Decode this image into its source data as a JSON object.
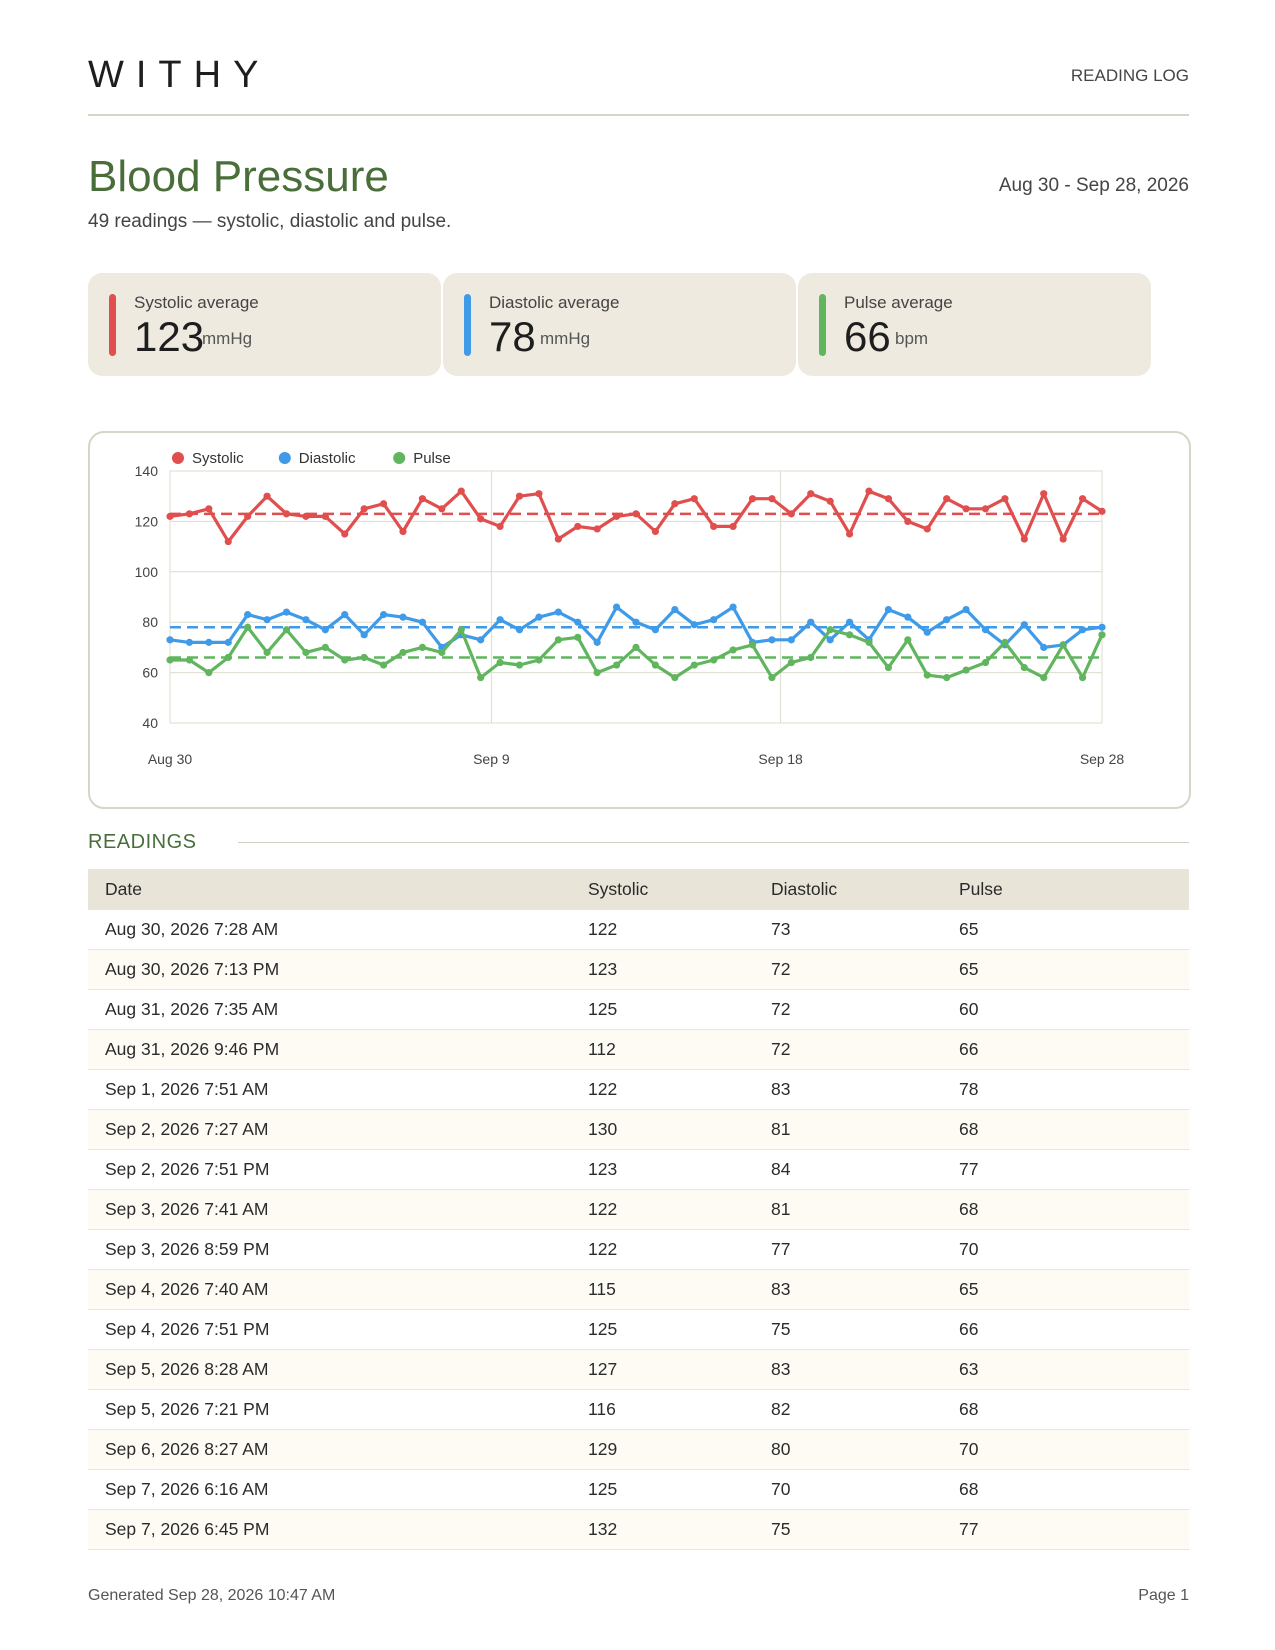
{
  "header": {
    "brand": "WITHY",
    "doc_type": "READING LOG"
  },
  "report": {
    "title": "Blood Pressure",
    "subtitle": "49 readings — systolic, diastolic and pulse.",
    "date_range": "Aug 30 - Sep 28, 2026"
  },
  "summary": [
    {
      "label": "Systolic average",
      "value": "123",
      "unit": "mmHg",
      "color": "#e04e4e"
    },
    {
      "label": "Diastolic average",
      "value": "78",
      "unit": "mmHg",
      "color": "#3f9ae8"
    },
    {
      "label": "Pulse average",
      "value": "66",
      "unit": "bpm",
      "color": "#60b55e"
    }
  ],
  "chart_data": {
    "type": "line",
    "title": "",
    "xlabel": "",
    "ylabel": "",
    "x_range": [
      "Aug 30",
      "Sep 28"
    ],
    "x_ticks": [
      "Aug 30",
      "Sep 9",
      "Sep 18",
      "Sep 28"
    ],
    "ylim": [
      40,
      140
    ],
    "y_ticks": [
      40,
      60,
      80,
      100,
      120,
      140
    ],
    "grid": true,
    "legend_position": "top-left",
    "x": [
      "Aug 30",
      "Aug 30",
      "Aug 31",
      "Aug 31",
      "Sep 1",
      "Sep 2",
      "Sep 2",
      "Sep 3",
      "Sep 3",
      "Sep 4",
      "Sep 4",
      "Sep 5",
      "Sep 5",
      "Sep 6",
      "Sep 7",
      "Sep 7",
      "Sep 8",
      "Sep 8",
      "Sep 9",
      "Sep 9",
      "Sep 10",
      "Sep 10",
      "Sep 11",
      "Sep 11",
      "Sep 12",
      "Sep 13",
      "Sep 14",
      "Sep 14",
      "Sep 15",
      "Sep 16",
      "Sep 17",
      "Sep 17",
      "Sep 18",
      "Sep 18",
      "Sep 19",
      "Sep 20",
      "Sep 21",
      "Sep 21",
      "Sep 22",
      "Sep 22",
      "Sep 23",
      "Sep 23",
      "Sep 24",
      "Sep 25",
      "Sep 26",
      "Sep 27",
      "Sep 27",
      "Sep 28",
      "Sep 28"
    ],
    "series": [
      {
        "name": "Systolic",
        "color": "#e04e4e",
        "average": 123,
        "values": [
          122,
          123,
          125,
          112,
          122,
          130,
          123,
          122,
          122,
          115,
          125,
          127,
          116,
          129,
          125,
          132,
          121,
          118,
          130,
          131,
          113,
          118,
          117,
          122,
          123,
          116,
          127,
          129,
          118,
          118,
          129,
          129,
          123,
          131,
          128,
          115,
          132,
          129,
          120,
          117,
          129,
          125,
          125,
          129,
          113,
          131,
          113,
          129,
          124
        ]
      },
      {
        "name": "Diastolic",
        "color": "#3f9ae8",
        "average": 78,
        "values": [
          73,
          72,
          72,
          72,
          83,
          81,
          84,
          81,
          77,
          83,
          75,
          83,
          82,
          80,
          70,
          75,
          73,
          81,
          77,
          82,
          84,
          80,
          72,
          86,
          80,
          77,
          85,
          79,
          81,
          86,
          72,
          73,
          73,
          80,
          73,
          80,
          73,
          85,
          82,
          76,
          81,
          85,
          77,
          71,
          79,
          70,
          71,
          77,
          78
        ]
      },
      {
        "name": "Pulse",
        "color": "#60b55e",
        "average": 66,
        "values": [
          65,
          65,
          60,
          66,
          78,
          68,
          77,
          68,
          70,
          65,
          66,
          63,
          68,
          70,
          68,
          77,
          58,
          64,
          63,
          65,
          73,
          74,
          60,
          63,
          70,
          63,
          58,
          63,
          65,
          69,
          71,
          58,
          64,
          66,
          77,
          75,
          72,
          62,
          73,
          59,
          58,
          61,
          64,
          72,
          62,
          58,
          71,
          58,
          75
        ]
      }
    ]
  },
  "readings": {
    "section_title": "READINGS",
    "columns": [
      "Date",
      "Systolic",
      "Diastolic",
      "Pulse"
    ],
    "rows": [
      [
        "Aug 30, 2026  7:28 AM",
        "122",
        "73",
        "65"
      ],
      [
        "Aug 30, 2026  7:13 PM",
        "123",
        "72",
        "65"
      ],
      [
        "Aug 31, 2026  7:35 AM",
        "125",
        "72",
        "60"
      ],
      [
        "Aug 31, 2026  9:46 PM",
        "112",
        "72",
        "66"
      ],
      [
        "Sep 1, 2026  7:51 AM",
        "122",
        "83",
        "78"
      ],
      [
        "Sep 2, 2026  7:27 AM",
        "130",
        "81",
        "68"
      ],
      [
        "Sep 2, 2026  7:51 PM",
        "123",
        "84",
        "77"
      ],
      [
        "Sep 3, 2026  7:41 AM",
        "122",
        "81",
        "68"
      ],
      [
        "Sep 3, 2026  8:59 PM",
        "122",
        "77",
        "70"
      ],
      [
        "Sep 4, 2026  7:40 AM",
        "115",
        "83",
        "65"
      ],
      [
        "Sep 4, 2026  7:51 PM",
        "125",
        "75",
        "66"
      ],
      [
        "Sep 5, 2026  8:28 AM",
        "127",
        "83",
        "63"
      ],
      [
        "Sep 5, 2026  7:21 PM",
        "116",
        "82",
        "68"
      ],
      [
        "Sep 6, 2026  8:27 AM",
        "129",
        "80",
        "70"
      ],
      [
        "Sep 7, 2026  6:16 AM",
        "125",
        "70",
        "68"
      ],
      [
        "Sep 7, 2026  6:45 PM",
        "132",
        "75",
        "77"
      ]
    ]
  },
  "footer": {
    "generated": "Generated Sep 28, 2026  10:47 AM",
    "page": "Page 1"
  }
}
